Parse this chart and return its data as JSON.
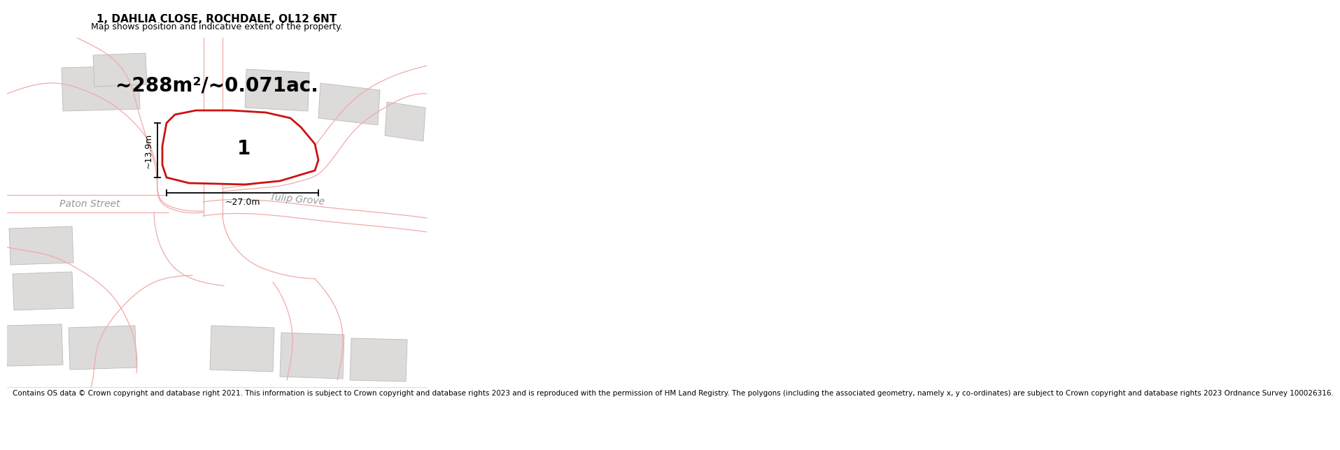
{
  "title": "1, DAHLIA CLOSE, ROCHDALE, OL12 6NT",
  "subtitle": "Map shows position and indicative extent of the property.",
  "area_text": "~288m²/~0.071ac.",
  "label_plot": "1",
  "dim_width": "~27.0m",
  "dim_height": "~13.9m",
  "street_label1": "Paton Street",
  "street_label2": "Tulip Grove",
  "footer": "Contains OS data © Crown copyright and database right 2021. This information is subject to Crown copyright and database rights 2023 and is reproduced with the permission of HM Land Registry. The polygons (including the associated geometry, namely x, y co-ordinates) are subject to Crown copyright and database rights 2023 Ordnance Survey 100026316.",
  "bg_color": "#f9f5f5",
  "plot_fill": "#ffffff",
  "plot_edge": "#cc1111",
  "building_fill": "#dddada",
  "building_edge": "#bbbbbb",
  "street_line_color": "#f0aaaa",
  "dim_color": "#000000",
  "title_fontsize": 11,
  "subtitle_fontsize": 9,
  "area_fontsize": 20,
  "label_fontsize": 20,
  "street_fontsize": 10,
  "footer_fontsize": 7.5
}
